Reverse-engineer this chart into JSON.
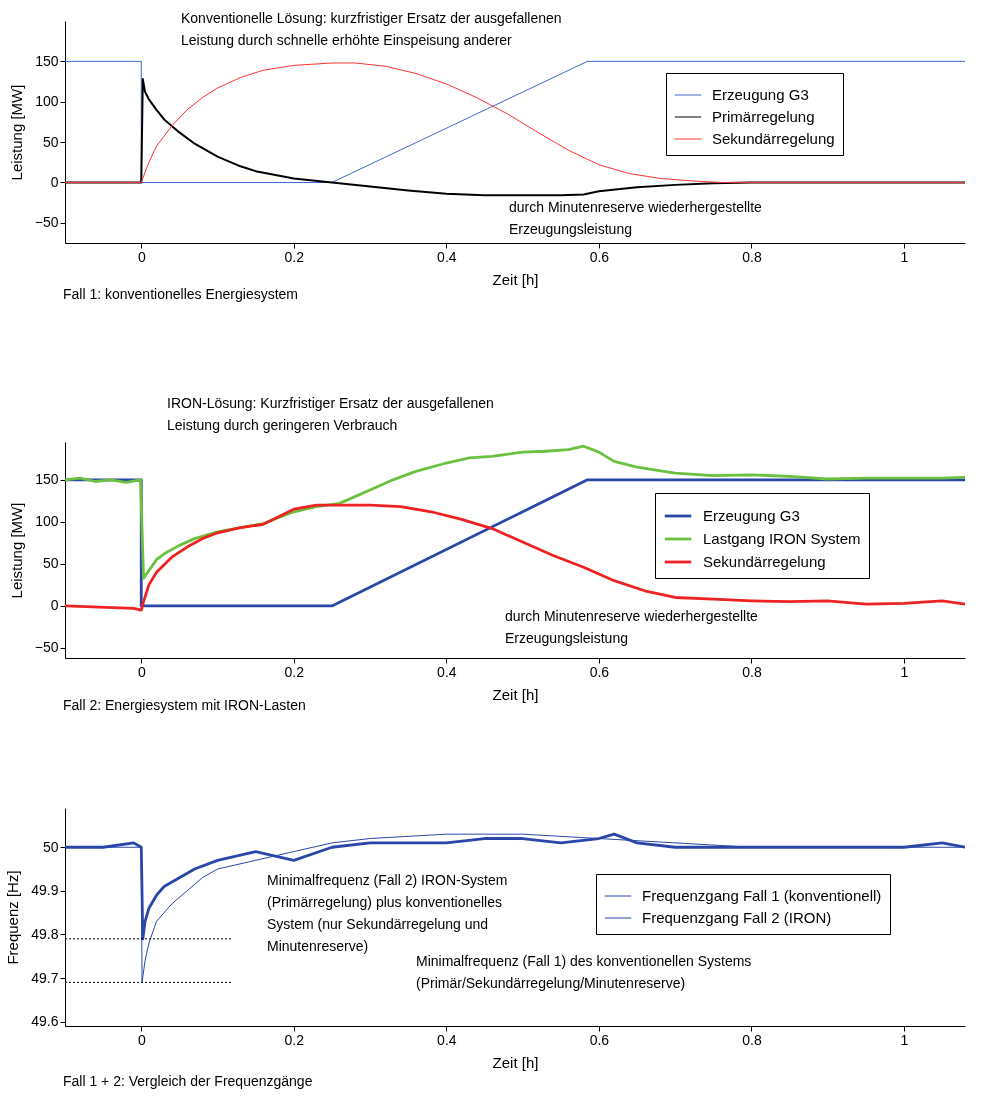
{
  "chart_data": [
    {
      "type": "line",
      "xlabel": "Zeit [h]",
      "ylabel": "Leistung [MW]",
      "xlim": [
        -0.1,
        1.08
      ],
      "ylim": [
        -75,
        200
      ],
      "xticks": [
        0,
        0.2,
        0.4,
        0.6,
        0.8,
        1
      ],
      "yticks": [
        -50,
        0,
        50,
        100,
        150
      ],
      "legend": "right",
      "annotations": [
        "Konventionelle Lösung: kurzfristiger Ersatz der ausgefallenen\nLeistung durch schnelle erhöhte Einspeisung anderer",
        "durch Minutenreserve wiederhergestellte\nErzeugungsleistung",
        "Fall 1: konventionelles Energiesystem"
      ],
      "series": [
        {
          "name": "Erzeugung G3",
          "color": "#4466cc",
          "x": [
            -0.1,
            0,
            0,
            0.25,
            0.585,
            1.08
          ],
          "values": [
            150,
            150,
            0,
            0,
            150,
            150
          ]
        },
        {
          "name": "Primärregelung",
          "color": "#000000",
          "x": [
            -0.1,
            0,
            0.002,
            0.005,
            0.01,
            0.02,
            0.03,
            0.05,
            0.07,
            0.1,
            0.13,
            0.15,
            0.2,
            0.25,
            0.3,
            0.35,
            0.4,
            0.45,
            0.5,
            0.55,
            0.58,
            0.6,
            0.65,
            0.7,
            0.75,
            0.8,
            0.9,
            1.08
          ],
          "values": [
            0,
            0,
            128,
            112,
            103,
            90,
            78,
            62,
            48,
            32,
            20,
            14,
            5,
            0,
            -5,
            -10,
            -14,
            -16,
            -16,
            -16,
            -15,
            -11,
            -6,
            -3,
            -1,
            0,
            0,
            0
          ]
        },
        {
          "name": "Sekundärregelung",
          "color": "#ff3333",
          "x": [
            -0.1,
            0,
            0.01,
            0.02,
            0.04,
            0.06,
            0.08,
            0.1,
            0.13,
            0.16,
            0.2,
            0.25,
            0.28,
            0.32,
            0.36,
            0.4,
            0.44,
            0.48,
            0.52,
            0.56,
            0.6,
            0.64,
            0.68,
            0.72,
            0.76,
            0.8,
            1.08
          ],
          "values": [
            0,
            0,
            25,
            45,
            70,
            90,
            105,
            117,
            130,
            139,
            145,
            148,
            148,
            144,
            135,
            122,
            105,
            85,
            62,
            40,
            22,
            11,
            5,
            2,
            0,
            0,
            0
          ]
        }
      ]
    },
    {
      "type": "line",
      "xlabel": "Zeit [h]",
      "ylabel": "Leistung [MW]",
      "xlim": [
        -0.1,
        1.08
      ],
      "ylim": [
        -62,
        195
      ],
      "xticks": [
        0,
        0.2,
        0.4,
        0.6,
        0.8,
        1
      ],
      "yticks": [
        -50,
        0,
        50,
        100,
        150
      ],
      "legend": "right",
      "annotations": [
        "IRON-Lösung: Kurzfristiger Ersatz der ausgefallenen\nLeistung durch geringeren Verbrauch",
        "durch Minutenreserve wiederhergestellte\nErzeugungsleistung",
        "Fall 2: Energiesystem mit IRON-Lasten"
      ],
      "series": [
        {
          "name": "Erzeugung G3",
          "color": "#2a46a8",
          "x": [
            -0.1,
            0,
            0,
            0.25,
            0.585,
            1.08
          ],
          "values": [
            150,
            150,
            0,
            0,
            150,
            150
          ]
        },
        {
          "name": "Lastgang IRON System",
          "color": "#6cc040",
          "x": [
            -0.1,
            -0.08,
            -0.06,
            -0.04,
            -0.02,
            -0.001,
            0.003,
            0.01,
            0.02,
            0.03,
            0.05,
            0.07,
            0.1,
            0.13,
            0.16,
            0.2,
            0.23,
            0.26,
            0.3,
            0.33,
            0.36,
            0.4,
            0.43,
            0.46,
            0.5,
            0.53,
            0.56,
            0.58,
            0.6,
            0.62,
            0.65,
            0.7,
            0.75,
            0.8,
            0.85,
            0.9,
            0.95,
            1.0,
            1.05,
            1.08
          ],
          "values": [
            150,
            152,
            148,
            150,
            147,
            150,
            33,
            42,
            55,
            62,
            72,
            80,
            88,
            93,
            98,
            112,
            118,
            122,
            138,
            150,
            160,
            170,
            176,
            178,
            183,
            184,
            186,
            190,
            183,
            172,
            165,
            158,
            155,
            156,
            154,
            151,
            152,
            152,
            152,
            153
          ]
        },
        {
          "name": "Sekundärregelung",
          "color": "#ee2222",
          "x": [
            -0.1,
            -0.01,
            0,
            0.003,
            0.01,
            0.02,
            0.04,
            0.06,
            0.08,
            0.1,
            0.13,
            0.16,
            0.2,
            0.23,
            0.26,
            0.3,
            0.34,
            0.38,
            0.42,
            0.46,
            0.5,
            0.54,
            0.58,
            0.62,
            0.66,
            0.7,
            0.75,
            0.8,
            0.85,
            0.9,
            0.95,
            1.0,
            1.05,
            1.08
          ],
          "values": [
            0,
            -3,
            -5,
            5,
            25,
            40,
            58,
            70,
            80,
            87,
            93,
            97,
            115,
            120,
            120,
            120,
            118,
            112,
            103,
            92,
            76,
            60,
            46,
            30,
            18,
            10,
            8,
            6,
            5,
            6,
            2,
            3,
            6,
            2
          ]
        }
      ]
    },
    {
      "type": "line",
      "xlabel": "Zeit [h]",
      "ylabel": "Frequenz [Hz]",
      "xlim": [
        -0.1,
        1.08
      ],
      "ylim": [
        49.59,
        50.09
      ],
      "xticks": [
        0,
        0.2,
        0.4,
        0.6,
        0.8,
        1
      ],
      "yticks": [
        49.6,
        49.7,
        49.8,
        49.9,
        50
      ],
      "legend": "right",
      "annotations": [
        "Minimalfrequenz (Fall 2) IRON-System\n(Primärregelung) plus konventionelles\nSystem (nur Sekundärregelung und\nMinutenreserve)",
        "Minimalfrequenz  (Fall 1) des konventionellen Systems\n(Primär/Sekundärregelung/Minutenreserve)",
        "Fall 1 + 2: Vergleich der Frequenzgänge"
      ],
      "series": [
        {
          "name": "Frequenzgang Fall 1 (konventionell)",
          "color": "#2a46a8",
          "x": [
            -0.1,
            0,
            0.001,
            0.005,
            0.01,
            0.02,
            0.04,
            0.06,
            0.08,
            0.1,
            0.15,
            0.2,
            0.25,
            0.3,
            0.4,
            0.5,
            0.6,
            0.7,
            0.8,
            0.9,
            1.0,
            1.08
          ],
          "values": [
            50,
            50,
            49.69,
            49.74,
            49.78,
            49.83,
            49.87,
            49.9,
            49.93,
            49.95,
            49.97,
            49.99,
            50.01,
            50.02,
            50.03,
            50.03,
            50.02,
            50.01,
            50,
            50,
            50,
            50
          ]
        },
        {
          "name": "Frequenzgang Fall 2 (IRON)",
          "color": "#2a46a8",
          "x": [
            -0.1,
            -0.05,
            -0.01,
            0,
            0.002,
            0.005,
            0.01,
            0.02,
            0.03,
            0.05,
            0.07,
            0.1,
            0.15,
            0.2,
            0.25,
            0.3,
            0.35,
            0.4,
            0.45,
            0.5,
            0.55,
            0.6,
            0.62,
            0.65,
            0.7,
            0.8,
            0.9,
            1.0,
            1.05,
            1.08
          ],
          "values": [
            50,
            50,
            50.01,
            50,
            49.79,
            49.83,
            49.86,
            49.89,
            49.91,
            49.93,
            49.95,
            49.97,
            49.99,
            49.97,
            50,
            50.01,
            50.01,
            50.01,
            50.02,
            50.02,
            50.01,
            50.02,
            50.03,
            50.01,
            50,
            50,
            50,
            50,
            50.01,
            50
          ]
        },
        {
          "color": "#000000",
          "line_style": "dotted",
          "x": [
            -0.1,
            0.12
          ],
          "values": [
            49.79,
            49.79
          ]
        },
        {
          "color": "#000000",
          "line_style": "dotted",
          "x": [
            -0.1,
            0.12
          ],
          "values": [
            49.69,
            49.69
          ]
        }
      ]
    }
  ]
}
